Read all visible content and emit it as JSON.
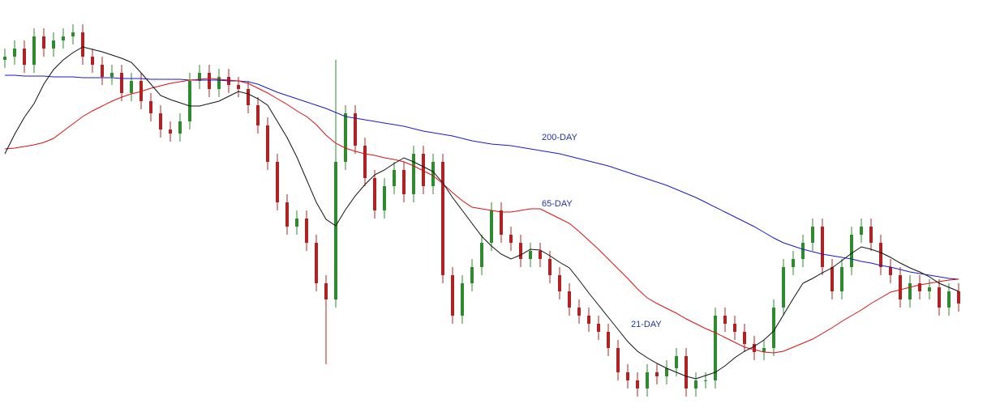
{
  "chart_data": {
    "type": "candlestick",
    "ylim": [
      0,
      514
    ],
    "up_color": "#2e8b2e",
    "down_color": "#b22222",
    "open": [
      440,
      444,
      454,
      434,
      469,
      454,
      464,
      469,
      474,
      444,
      434,
      419,
      424,
      399,
      414,
      389,
      374,
      354,
      349,
      364,
      414,
      424,
      404,
      419,
      409,
      404,
      384,
      359,
      314,
      264,
      234,
      244,
      214,
      164,
      144,
      314,
      374,
      334,
      294,
      254,
      284,
      304,
      274,
      324,
      284,
      314,
      174,
      124,
      164,
      184,
      214,
      254,
      224,
      214,
      194,
      204,
      194,
      174,
      154,
      134,
      124,
      114,
      104,
      84,
      54,
      44,
      34,
      54,
      49,
      59,
      74,
      34,
      44,
      44,
      124,
      114,
      104,
      89,
      79,
      84,
      134,
      184,
      194,
      214,
      234,
      184,
      154,
      184,
      224,
      234,
      214,
      184,
      174,
      144,
      164,
      154,
      159,
      134,
      154
    ],
    "high": [
      454,
      464,
      464,
      479,
      479,
      474,
      479,
      484,
      484,
      454,
      444,
      434,
      434,
      424,
      424,
      399,
      384,
      364,
      374,
      424,
      434,
      434,
      429,
      429,
      419,
      414,
      394,
      369,
      324,
      274,
      254,
      254,
      224,
      174,
      440,
      384,
      384,
      344,
      304,
      294,
      314,
      314,
      334,
      334,
      324,
      324,
      184,
      174,
      194,
      224,
      264,
      264,
      234,
      224,
      214,
      214,
      204,
      184,
      164,
      144,
      134,
      124,
      114,
      94,
      64,
      54,
      64,
      64,
      69,
      84,
      84,
      54,
      54,
      134,
      134,
      124,
      114,
      99,
      94,
      144,
      194,
      204,
      224,
      244,
      244,
      194,
      194,
      234,
      244,
      244,
      224,
      194,
      184,
      174,
      174,
      169,
      169,
      164,
      164
    ],
    "low": [
      430,
      434,
      424,
      424,
      444,
      444,
      454,
      459,
      434,
      424,
      409,
      409,
      389,
      389,
      379,
      364,
      344,
      339,
      339,
      354,
      404,
      394,
      394,
      399,
      394,
      374,
      349,
      304,
      254,
      224,
      224,
      204,
      154,
      64,
      134,
      304,
      324,
      284,
      244,
      244,
      274,
      264,
      264,
      274,
      274,
      164,
      114,
      114,
      154,
      174,
      204,
      214,
      204,
      184,
      184,
      184,
      164,
      144,
      124,
      114,
      104,
      94,
      74,
      44,
      34,
      24,
      24,
      39,
      39,
      49,
      24,
      24,
      34,
      34,
      104,
      94,
      79,
      69,
      69,
      74,
      124,
      174,
      184,
      204,
      174,
      144,
      144,
      174,
      214,
      204,
      174,
      164,
      134,
      134,
      144,
      144,
      124,
      124,
      129
    ],
    "close": [
      444,
      454,
      434,
      469,
      454,
      464,
      469,
      474,
      444,
      434,
      419,
      424,
      399,
      414,
      389,
      374,
      354,
      349,
      364,
      414,
      424,
      404,
      419,
      409,
      404,
      384,
      359,
      314,
      264,
      234,
      244,
      214,
      164,
      144,
      314,
      374,
      334,
      294,
      254,
      284,
      304,
      274,
      324,
      284,
      314,
      174,
      124,
      164,
      184,
      214,
      254,
      224,
      214,
      194,
      204,
      194,
      174,
      154,
      134,
      124,
      114,
      104,
      84,
      54,
      44,
      34,
      54,
      49,
      59,
      74,
      34,
      44,
      44,
      124,
      114,
      104,
      89,
      79,
      84,
      134,
      184,
      194,
      214,
      234,
      184,
      154,
      184,
      224,
      234,
      214,
      184,
      174,
      144,
      164,
      154,
      159,
      134,
      154,
      139
    ],
    "series": [
      {
        "name": "200-DAY",
        "color": "#1a1acc",
        "values": [
          421,
          421,
          420,
          420,
          420,
          419,
          419,
          419,
          418,
          418,
          418,
          418,
          417,
          417,
          417,
          416,
          416,
          416,
          416,
          415,
          415,
          415,
          415,
          414,
          414,
          413,
          410,
          405,
          400,
          396,
          392,
          388,
          384,
          380,
          375,
          370,
          368,
          366,
          364,
          362,
          360,
          358,
          355,
          352,
          350,
          348,
          346,
          343,
          340,
          338,
          336,
          335,
          334,
          332,
          330,
          328,
          326,
          324,
          321,
          318,
          315,
          312,
          309,
          305,
          301,
          297,
          293,
          289,
          285,
          280,
          275,
          270,
          264,
          258,
          252,
          246,
          240,
          234,
          227,
          220,
          214,
          210,
          206,
          203,
          200,
          198,
          196,
          194,
          191,
          189,
          186,
          184,
          181,
          178,
          176,
          174,
          172,
          170,
          169
        ]
      },
      {
        "name": "65-DAY",
        "color": "#dd1111",
        "values": [
          330,
          331,
          333,
          335,
          338,
          343,
          352,
          361,
          370,
          377,
          383,
          389,
          394,
          398,
          401,
          405,
          408,
          411,
          413,
          415,
          416,
          417,
          416,
          415,
          414,
          411,
          405,
          399,
          392,
          385,
          377,
          370,
          360,
          347,
          337,
          331,
          327,
          324,
          322,
          319,
          317,
          314,
          309,
          303,
          297,
          287,
          276,
          266,
          258,
          256,
          254,
          252,
          252,
          254,
          256,
          256,
          250,
          244,
          238,
          228,
          217,
          206,
          194,
          182,
          170,
          157,
          146,
          139,
          133,
          127,
          120,
          114,
          108,
          103,
          97,
          91,
          85,
          82,
          79,
          78,
          80,
          85,
          90,
          95,
          102,
          109,
          117,
          124,
          131,
          139,
          146,
          153,
          156,
          159,
          162,
          164,
          166,
          168,
          169
        ]
      },
      {
        "name": "21-DAY",
        "color": "#111111",
        "values": [
          324,
          348,
          369,
          386,
          410,
          428,
          440,
          449,
          456,
          453,
          450,
          446,
          442,
          437,
          424,
          410,
          396,
          391,
          387,
          383,
          383,
          386,
          389,
          395,
          401,
          398,
          392,
          384,
          364,
          344,
          320,
          292,
          264,
          243,
          235,
          255,
          272,
          286,
          298,
          304,
          312,
          319,
          314,
          308,
          302,
          288,
          270,
          254,
          238,
          222,
          210,
          200,
          194,
          199,
          206,
          205,
          198,
          190,
          183,
          168,
          152,
          137,
          122,
          107,
          92,
          80,
          72,
          65,
          59,
          54,
          49,
          46,
          50,
          54,
          62,
          72,
          80,
          86,
          94,
          105,
          125,
          145,
          164,
          170,
          177,
          183,
          192,
          201,
          209,
          206,
          202,
          196,
          189,
          183,
          178,
          172,
          164,
          159,
          154
        ]
      }
    ]
  }
}
